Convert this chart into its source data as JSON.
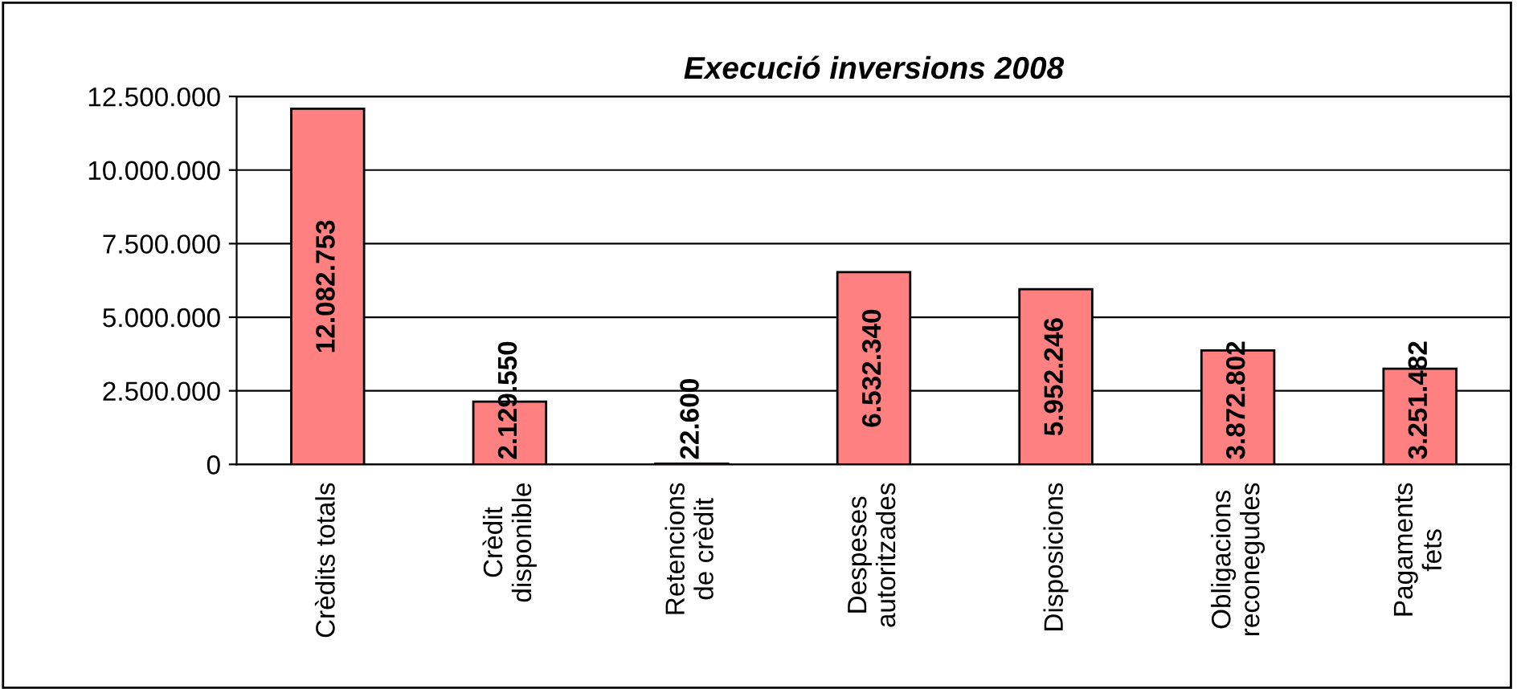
{
  "chart_data": {
    "type": "bar",
    "title": "Execució inversions 2008",
    "categories": [
      "Crèdits totals",
      "Crèdit\ndisponible",
      "Retencions\nde crèdit",
      "Despeses\nautoritzades",
      "Disposicions",
      "Obligacions\nreconegudes",
      "Pagaments\nfets"
    ],
    "values": [
      12082753,
      2129550,
      22600,
      6532340,
      5952246,
      3872802,
      3251482
    ],
    "value_labels": [
      "12.082.753",
      "2.129.550",
      "22.600",
      "6.532.340",
      "5.952.246",
      "3.872.802",
      "3.251.482"
    ],
    "color": "#ff8080",
    "ylim": [
      0,
      12500000
    ],
    "yticks": [
      {
        "value": 0,
        "label": "0"
      },
      {
        "value": 2500000,
        "label": "2.500.000"
      },
      {
        "value": 5000000,
        "label": "5.000.000"
      },
      {
        "value": 7500000,
        "label": "7.500.000"
      },
      {
        "value": 10000000,
        "label": "10.000.000"
      },
      {
        "value": 12500000,
        "label": "12.500.000"
      }
    ],
    "grid": "y"
  }
}
